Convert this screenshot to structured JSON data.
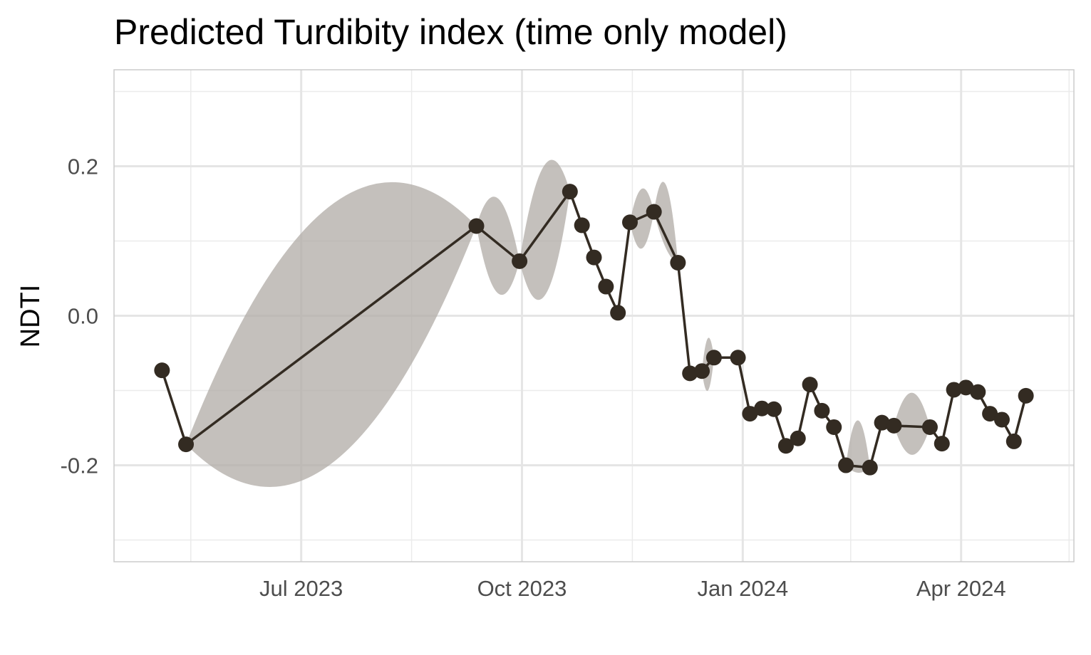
{
  "chart_data": {
    "type": "line",
    "title": "Predicted Turdibity index (time only model)",
    "xlabel": "",
    "ylabel": "NDTI",
    "x_ticks": [
      "2023-07-01",
      "2023-10-01",
      "2024-01-01",
      "2024-04-01"
    ],
    "x_tick_labels": [
      "Jul 2023",
      "Oct 2023",
      "Jan 2024",
      "Apr 2024"
    ],
    "x_minor_ticks": [
      "2023-05-16",
      "2023-08-16",
      "2023-11-16",
      "2024-02-15",
      "2024-05-16"
    ],
    "y_ticks": [
      -0.2,
      0.0,
      0.2
    ],
    "y_tick_labels": [
      "-0.2",
      "0.0",
      "0.2"
    ],
    "y_minor_ticks": [
      -0.3,
      -0.1,
      0.1,
      0.3
    ],
    "xlim": [
      "2023-04-14",
      "2024-05-18"
    ],
    "ylim": [
      -0.329,
      0.329
    ],
    "grid": true,
    "series": [
      {
        "color": "#332b22",
        "ribbon_color": "#b0aba6",
        "x": [
          "2023-05-04",
          "2023-05-14",
          "2023-09-12",
          "2023-09-30",
          "2023-10-21",
          "2023-10-26",
          "2023-10-31",
          "2023-11-05",
          "2023-11-10",
          "2023-11-15",
          "2023-11-25",
          "2023-12-05",
          "2023-12-10",
          "2023-12-15",
          "2023-12-20",
          "2023-12-30",
          "2024-01-04",
          "2024-01-09",
          "2024-01-14",
          "2024-01-19",
          "2024-01-24",
          "2024-01-29",
          "2024-02-03",
          "2024-02-08",
          "2024-02-13",
          "2024-02-23",
          "2024-02-28",
          "2024-03-04",
          "2024-03-19",
          "2024-03-24",
          "2024-03-29",
          "2024-04-03",
          "2024-04-08",
          "2024-04-13",
          "2024-04-18",
          "2024-04-23",
          "2024-04-28"
        ],
        "y": [
          -0.073,
          -0.172,
          0.12,
          0.073,
          0.166,
          0.121,
          0.078,
          0.039,
          0.004,
          0.125,
          0.139,
          0.071,
          -0.077,
          -0.074,
          -0.056,
          -0.056,
          -0.131,
          -0.124,
          -0.125,
          -0.174,
          -0.164,
          -0.092,
          -0.127,
          -0.149,
          -0.2,
          -0.203,
          -0.143,
          -0.147,
          -0.149,
          -0.171,
          -0.099,
          -0.096,
          -0.102,
          -0.131,
          -0.139,
          -0.168,
          -0.107
        ],
        "lower": [
          -0.073,
          -0.172,
          0.12,
          0.073,
          0.166,
          0.121,
          0.078,
          0.039,
          0.004,
          0.125,
          0.139,
          0.071,
          -0.077,
          -0.074,
          -0.056,
          -0.056,
          -0.131,
          -0.124,
          -0.125,
          -0.174,
          -0.164,
          -0.092,
          -0.127,
          -0.149,
          -0.2,
          -0.203,
          -0.143,
          -0.147,
          -0.149,
          -0.171,
          -0.099,
          -0.096,
          -0.102,
          -0.131,
          -0.139,
          -0.168,
          -0.107
        ],
        "upper": [
          -0.073,
          -0.172,
          0.12,
          0.073,
          0.166,
          0.121,
          0.078,
          0.039,
          0.004,
          0.125,
          0.139,
          0.071,
          -0.077,
          -0.074,
          -0.056,
          -0.056,
          -0.131,
          -0.124,
          -0.125,
          -0.174,
          -0.164,
          -0.092,
          -0.127,
          -0.149,
          -0.2,
          -0.203,
          -0.143,
          -0.147,
          -0.149,
          -0.171,
          -0.099,
          -0.096,
          -0.102,
          -0.131,
          -0.139,
          -0.168,
          -0.107
        ]
      }
    ],
    "ribbons": [
      {
        "x": [
          "2023-05-14",
          "2023-09-12"
        ],
        "lower": [
          -0.172,
          0.12
        ],
        "upper": [
          -0.172,
          0.12
        ],
        "peak_upper": 0.148,
        "peak_lower": -0.198
      },
      {
        "x": [
          "2023-09-12",
          "2023-09-30"
        ],
        "lower": [
          0.12,
          0.073
        ],
        "upper": [
          0.12,
          0.073
        ],
        "peak_upper": 0.157,
        "peak_lower": 0.03
      },
      {
        "x": [
          "2023-09-30",
          "2023-10-21"
        ],
        "lower": [
          0.073,
          0.166
        ],
        "upper": [
          0.073,
          0.166
        ],
        "peak_upper": 0.202,
        "peak_lower": 0.027
      },
      {
        "x": [
          "2023-11-25",
          "2023-12-05"
        ],
        "lower": [
          0.139,
          0.071
        ],
        "upper": [
          0.139,
          0.071
        ],
        "peak_upper": 0.175,
        "peak_lower": 0.09
      },
      {
        "x": [
          "2023-11-15",
          "2023-11-25"
        ],
        "lower": [
          0.125,
          0.139
        ],
        "upper": [
          0.125,
          0.139
        ],
        "peak_upper": 0.17,
        "peak_lower": 0.09
      },
      {
        "x": [
          "2023-12-15",
          "2023-12-20"
        ],
        "lower": [
          -0.074,
          -0.056
        ],
        "upper": [
          -0.074,
          -0.056
        ],
        "peak_upper": -0.03,
        "peak_lower": -0.1
      },
      {
        "x": [
          "2024-03-04",
          "2024-03-19"
        ],
        "lower": [
          -0.147,
          -0.149
        ],
        "upper": [
          -0.147,
          -0.149
        ],
        "peak_upper": -0.103,
        "peak_lower": -0.186
      },
      {
        "x": [
          "2024-02-13",
          "2024-02-23"
        ],
        "lower": [
          -0.2,
          -0.203
        ],
        "upper": [
          -0.2,
          -0.203
        ],
        "peak_upper": -0.14,
        "peak_lower": -0.21
      }
    ]
  }
}
